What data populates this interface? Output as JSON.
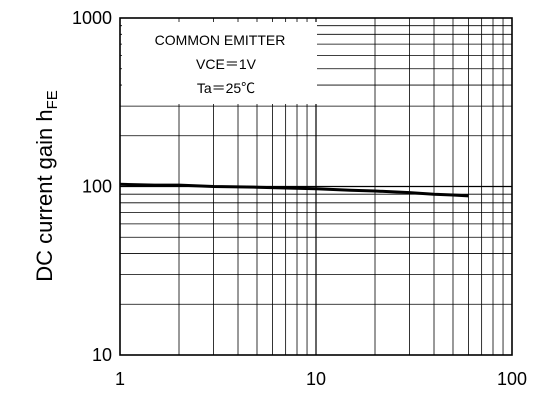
{
  "chart_data": {
    "type": "line",
    "x_scale": "log",
    "y_scale": "log",
    "xlim": [
      1,
      100
    ],
    "ylim": [
      10,
      1000
    ],
    "grid": true,
    "x_ticks": [
      "1",
      "10",
      "100"
    ],
    "y_ticks": [
      "1000",
      "100",
      "10"
    ],
    "ylabel_main": "DC current gain h",
    "ylabel_sub": "FE",
    "annotation": {
      "line1": "COMMON EMITTER",
      "line2": "VCE＝1V",
      "line3": "Ta＝25℃"
    },
    "series": [
      {
        "x": [
          1,
          1.5,
          2,
          3,
          5,
          7,
          10,
          15,
          20,
          30,
          40,
          50,
          60
        ],
        "y": [
          103,
          102,
          102,
          100,
          99,
          98,
          97,
          95,
          94,
          92,
          90,
          89,
          88
        ]
      }
    ],
    "colors": {
      "line": "#000000",
      "grid": "#000000",
      "background": "#ffffff"
    }
  }
}
